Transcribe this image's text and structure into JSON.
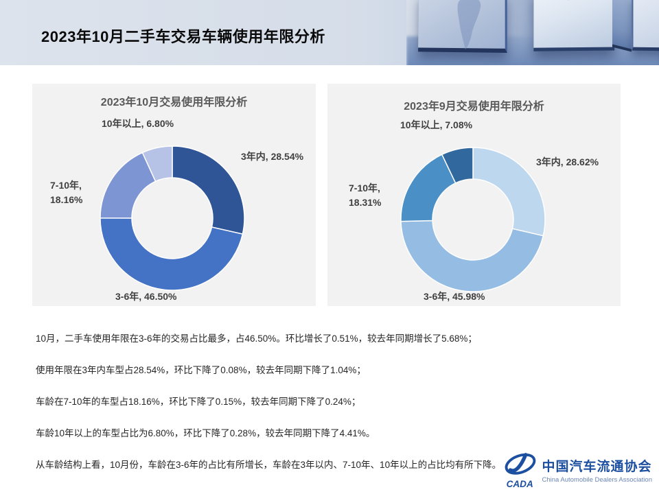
{
  "header": {
    "title": "2023年10月二手车交易车辆使用年限分析"
  },
  "chart_data": [
    {
      "type": "donut",
      "title": "2023年10月交易使用年限分析",
      "start_angle_deg": 0,
      "direction": "clockwise",
      "inner_radius_ratio": 0.56,
      "segments": [
        {
          "label": "3年内",
          "value": 28.54,
          "display": "3年内, 28.54%",
          "color": "#2F5597"
        },
        {
          "label": "3-6年",
          "value": 46.5,
          "display": "3-6年, 46.50%",
          "color": "#4472C4"
        },
        {
          "label": "7-10年",
          "value": 18.16,
          "display": "7-10年, 18.16%",
          "color": "#7E95D3"
        },
        {
          "label": "10年以上",
          "value": 6.8,
          "display": "10年以上, 6.80%",
          "color": "#B6C3E6"
        }
      ]
    },
    {
      "type": "donut",
      "title": "2023年9月交易使用年限分析",
      "start_angle_deg": 0,
      "direction": "clockwise",
      "inner_radius_ratio": 0.56,
      "segments": [
        {
          "label": "3年内",
          "value": 28.62,
          "display": "3年内, 28.62%",
          "color": "#BDD7EE"
        },
        {
          "label": "3-6年",
          "value": 45.98,
          "display": "3-6年, 45.98%",
          "color": "#95BCE3"
        },
        {
          "label": "7-10年",
          "value": 18.31,
          "display": "7-10年, 18.31%",
          "color": "#4A90C6"
        },
        {
          "label": "10年以上",
          "value": 7.08,
          "display": "10年以上, 7.08%",
          "color": "#31699E"
        }
      ]
    }
  ],
  "notes": [
    "10月，二手车使用年限在3-6年的交易占比最多，占46.50%。环比增长了0.51%，较去年同期增长了5.68%；",
    "使用年限在3年内车型占28.54%，环比下降了0.08%，较去年同期下降了1.04%；",
    "车龄在7-10年的车型占18.16%，环比下降了0.15%，较去年同期下降了0.24%；",
    "车龄10年以上的车型占比为6.80%，环比下降了0.28%，较去年同期下降了4.41%。",
    "从车龄结构上看，10月份，车龄在3-6年的占比有所增长，车龄在3年以内、7-10年、10年以上的占比均有所下降。"
  ],
  "logo": {
    "abbr": "CADA",
    "name_cn": "中国汽车流通协会",
    "name_en": "China Automobile Dealers Association",
    "accent_color": "#1D4FA0"
  }
}
